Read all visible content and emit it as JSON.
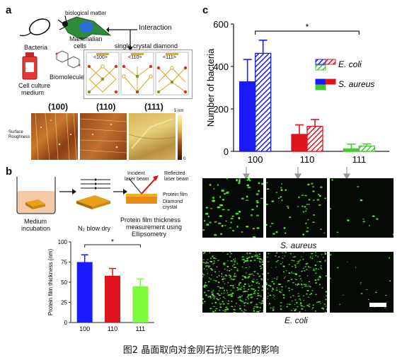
{
  "panel_a": {
    "letter": "a",
    "labels": {
      "biological_matter": "biological matter",
      "interaction": "Interaction",
      "bacteria": "Bacteria",
      "mammalian": "Mammalian",
      "cells": "cells",
      "single_crystal_diamond": "single crystal diamond",
      "biomolecule": "Biomolecule",
      "cell_culture": "Cell culture",
      "medium": "medium",
      "o100": "<100>",
      "o110": "<110>",
      "o111": "<111>",
      "afm100": "(100)",
      "afm110": "(110)",
      "afm111": "(111)",
      "surface": "Surface",
      "roughness": "Roughness",
      "scale_top": "5 nm",
      "scale_bottom": "0"
    }
  },
  "panel_b": {
    "letter": "b",
    "labels": {
      "medium": "Medium",
      "incubation": "incubation",
      "n2_dry": "N₂ blow dry",
      "incident": "Incident",
      "laser_beam_1": "laser beam",
      "reflected": "Reflected",
      "laser_beam_2": "laser beam",
      "protein_film": "Protein film",
      "diamond": "Diamond",
      "crystal": "crystal",
      "measure_1": "Protein film thickness",
      "measure_2": "measurement using",
      "measure_3": "Ellipsometry"
    }
  },
  "panel_c": {
    "letter": "c",
    "labels": {
      "s_aureus": "S. aureus",
      "e_coli": "E. coli"
    }
  },
  "chart_data": [
    {
      "type": "bar",
      "panel": "b",
      "categories": [
        "100",
        "110",
        "111"
      ],
      "values": [
        75,
        58,
        45
      ],
      "errors": [
        9,
        9,
        9
      ],
      "colors": [
        "#1a1aff",
        "#e0141e",
        "#7cfc3c"
      ],
      "ylabel": "Protein film thickness (nm)",
      "ylim": [
        0,
        100
      ],
      "yticks": [
        0,
        25,
        50,
        75,
        100
      ],
      "significance": "*"
    },
    {
      "type": "bar",
      "panel": "c",
      "categories": [
        "100",
        "110",
        "111"
      ],
      "series": [
        {
          "name": "S. aureus",
          "values": [
            328,
            80,
            12
          ],
          "errors": [
            105,
            45,
            22
          ],
          "pattern": "solid"
        },
        {
          "name": "E. coli",
          "values": [
            462,
            118,
            25
          ],
          "errors": [
            62,
            32,
            10
          ],
          "pattern": "hatched"
        }
      ],
      "colors": [
        "#1a1aff",
        "#e0141e",
        "#46c832"
      ],
      "ylabel": "Number of bacteria",
      "ylim": [
        0,
        600
      ],
      "yticks": [
        0,
        200,
        400,
        600
      ],
      "legend": "top-right",
      "significance": "*"
    }
  ],
  "caption": "图2 晶面取向对金刚石抗污性能的影响"
}
